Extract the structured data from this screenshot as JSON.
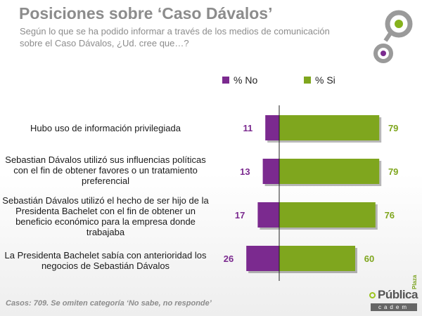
{
  "header": {
    "title": "Posiciones sobre ‘Caso Dávalos’",
    "subtitle": "Según lo que se ha podido informar a través de los medios de comunicación sobre el Caso Dávalos, ¿Ud. cree que…?"
  },
  "colors": {
    "no": "#7b2a8f",
    "si": "#7fa61e",
    "no_label": "#7b2a8f",
    "si_label": "#7fa61e"
  },
  "chart_data": {
    "type": "bar",
    "orientation": "horizontal-diverging",
    "categories": [
      "Hubo uso de información privilegiada",
      "Sebastian Dávalos utilizó sus influencias políticas con el fin de obtener favores o un tratamiento preferencial",
      "Sebastián Dávalos utilizó el hecho de ser hijo de la Presidenta Bachelet con el fin de obtener un beneficio económico para la empresa donde trabajaba",
      "La Presidenta Bachelet sabía con anterioridad los negocios de Sebastián Dávalos"
    ],
    "series": [
      {
        "name": "% No",
        "values": [
          11,
          13,
          17,
          26
        ]
      },
      {
        "name": "% Si",
        "values": [
          79,
          79,
          76,
          60
        ]
      }
    ],
    "legend": "top"
  },
  "footnote": "Casos: 709. Se omiten categoría ‘No sabe, no responde’",
  "brand": {
    "name": "Pública",
    "tag": "Plaza",
    "sub": "cadem"
  }
}
